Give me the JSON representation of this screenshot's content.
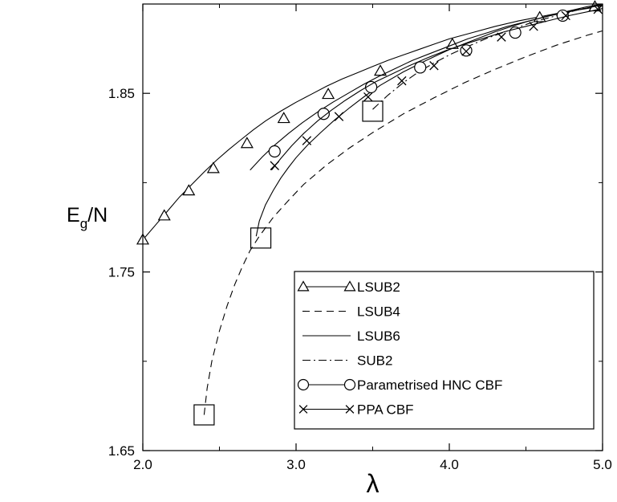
{
  "chart_data": {
    "type": "line",
    "xlabel": "λ",
    "ylabel_main": "E",
    "ylabel_sub": "g",
    "ylabel_tail": "/N",
    "xlim": [
      2.0,
      5.0
    ],
    "ylim": [
      1.65,
      1.9
    ],
    "xticks": [
      {
        "value": 2.0,
        "label": "2.0"
      },
      {
        "value": 3.0,
        "label": "3.0"
      },
      {
        "value": 4.0,
        "label": "4.0"
      },
      {
        "value": 5.0,
        "label": "5.0"
      }
    ],
    "yticks": [
      {
        "value": 1.65,
        "label": "1.65"
      },
      {
        "value": 1.75,
        "label": "1.75"
      },
      {
        "value": 1.85,
        "label": "1.85"
      }
    ],
    "legend_position": "bottom-right",
    "series": [
      {
        "name": "LSUB2",
        "style": "solid",
        "marker": "triangle",
        "x": [
          2.0,
          2.08,
          2.16,
          2.24,
          2.32,
          2.4,
          2.48,
          2.56,
          2.64,
          2.72,
          2.8,
          2.9,
          3.0,
          3.1,
          3.2,
          3.3,
          3.4,
          3.5,
          3.6,
          3.7,
          3.8,
          3.9,
          4.0,
          4.15,
          4.3,
          4.45,
          4.6,
          4.75,
          4.9,
          5.0
        ],
        "y": [
          1.768,
          1.776,
          1.784,
          1.792,
          1.799,
          1.806,
          1.8125,
          1.8185,
          1.824,
          1.8295,
          1.8345,
          1.84,
          1.845,
          1.8495,
          1.854,
          1.858,
          1.8615,
          1.865,
          1.8685,
          1.8715,
          1.8745,
          1.8775,
          1.8805,
          1.884,
          1.8875,
          1.8905,
          1.893,
          1.8955,
          1.8975,
          1.899
        ],
        "marker_x": [
          2.0,
          2.14,
          2.3,
          2.46,
          2.68,
          2.92,
          3.21,
          3.55,
          4.02,
          4.59,
          4.95
        ],
        "marker_y": [
          1.768,
          1.7815,
          1.7955,
          1.808,
          1.822,
          1.836,
          1.8495,
          1.8625,
          1.8775,
          1.8925,
          1.8985
        ]
      },
      {
        "name": "LSUB4",
        "style": "dashed",
        "marker": "none",
        "x": [
          2.4,
          2.42,
          2.45,
          2.5,
          2.55,
          2.6,
          2.65,
          2.7,
          2.76,
          2.85,
          2.95,
          3.05,
          3.2,
          3.35,
          3.5,
          3.7,
          3.9,
          4.1,
          4.3,
          4.5,
          4.7,
          4.9,
          5.0
        ],
        "y": [
          1.67,
          1.685,
          1.7,
          1.717,
          1.731,
          1.743,
          1.753,
          1.762,
          1.77,
          1.7805,
          1.79,
          1.799,
          1.81,
          1.8195,
          1.828,
          1.8385,
          1.8475,
          1.856,
          1.8635,
          1.8705,
          1.877,
          1.8825,
          1.885
        ],
        "square_x": [
          2.4,
          2.77,
          3.5
        ],
        "square_y": [
          1.67,
          1.769,
          1.84
        ]
      },
      {
        "name": "LSUB6",
        "style": "solid",
        "marker": "none",
        "x": [
          2.74,
          2.76,
          2.8,
          2.85,
          2.9,
          2.95,
          3.0,
          3.08,
          3.16,
          3.25,
          3.35,
          3.45,
          3.55,
          3.7,
          3.85,
          4.0,
          4.15,
          4.3,
          4.5,
          4.7,
          4.9,
          5.0
        ],
        "y": [
          1.77,
          1.7785,
          1.7875,
          1.7955,
          1.8025,
          1.8085,
          1.814,
          1.8215,
          1.828,
          1.835,
          1.842,
          1.8485,
          1.8545,
          1.862,
          1.8685,
          1.8745,
          1.8795,
          1.8845,
          1.89,
          1.8945,
          1.8985,
          1.9
        ]
      },
      {
        "name": "SUB2",
        "style": "dashdot",
        "marker": "none",
        "x": [
          3.5,
          3.6,
          3.7,
          3.8,
          3.9,
          4.0,
          4.1,
          4.25,
          4.4,
          4.55,
          4.7,
          4.85,
          5.0
        ],
        "y": [
          1.841,
          1.849,
          1.856,
          1.862,
          1.867,
          1.8715,
          1.8755,
          1.881,
          1.8855,
          1.89,
          1.8935,
          1.897,
          1.8995
        ]
      },
      {
        "name": "Parametrised HNC CBF",
        "style": "solid",
        "marker": "circle",
        "x": [
          2.7,
          2.78,
          2.86,
          2.95,
          3.04,
          3.14,
          3.24,
          3.34,
          3.44,
          3.54,
          3.65,
          3.76,
          3.88,
          4.0,
          4.12,
          4.25,
          4.38,
          4.52,
          4.66,
          4.8,
          4.94,
          5.0
        ],
        "y": [
          1.807,
          1.8145,
          1.821,
          1.8275,
          1.8335,
          1.8395,
          1.845,
          1.85,
          1.855,
          1.8595,
          1.864,
          1.8685,
          1.8725,
          1.8765,
          1.8805,
          1.884,
          1.8875,
          1.8905,
          1.8935,
          1.896,
          1.8985,
          1.8995
        ],
        "marker_x": [
          2.86,
          3.18,
          3.49,
          3.81,
          4.11,
          4.43,
          4.74
        ],
        "marker_y": [
          1.8175,
          1.8385,
          1.8535,
          1.8645,
          1.874,
          1.884,
          1.8935
        ]
      },
      {
        "name": "PPA CBF",
        "style": "solid",
        "marker": "cross",
        "x": [
          2.84,
          2.9,
          2.97,
          3.05,
          3.14,
          3.23,
          3.32,
          3.42,
          3.52,
          3.63,
          3.74,
          3.86,
          3.98,
          4.1,
          4.23,
          4.36,
          4.5,
          4.64,
          4.78,
          4.92,
          5.0
        ],
        "y": [
          1.807,
          1.8135,
          1.8205,
          1.8275,
          1.8345,
          1.8405,
          1.846,
          1.8515,
          1.8565,
          1.861,
          1.8655,
          1.87,
          1.874,
          1.8775,
          1.881,
          1.8845,
          1.8875,
          1.8905,
          1.8935,
          1.896,
          1.8975
        ],
        "marker_x": [
          2.86,
          3.07,
          3.28,
          3.47,
          3.69,
          3.9,
          4.11,
          4.34,
          4.55,
          4.76,
          4.97
        ],
        "marker_y": [
          1.8095,
          1.8235,
          1.837,
          1.848,
          1.857,
          1.8655,
          1.8735,
          1.8815,
          1.8875,
          1.8935,
          1.897
        ]
      }
    ]
  }
}
